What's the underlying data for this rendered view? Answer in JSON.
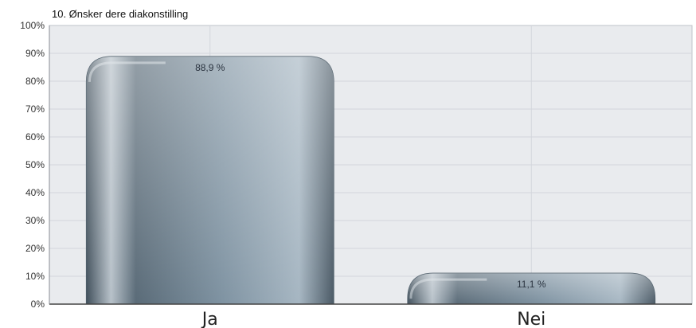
{
  "chart_data": {
    "type": "bar",
    "title": "10. Ønsker dere diakonstilling",
    "xlabel": "",
    "ylabel": "",
    "categories": [
      "Ja",
      "Nei"
    ],
    "values": [
      88.9,
      11.1
    ],
    "value_labels": [
      "88,9 %",
      "11,1 %"
    ],
    "ylim": [
      0,
      100
    ],
    "y_ticks": [
      0,
      10,
      20,
      30,
      40,
      50,
      60,
      70,
      80,
      90,
      100
    ],
    "y_tick_labels": [
      "0%",
      "10%",
      "20%",
      "30%",
      "40%",
      "50%",
      "60%",
      "70%",
      "80%",
      "90%",
      "100%"
    ],
    "grid": true,
    "legend": "none",
    "colors": {
      "plot_background": "#e9ebee",
      "grid": "#d3d6dc",
      "bar_dark": "#4a5a66",
      "bar_mid": "#6e8494",
      "bar_light": "#a6b6c2",
      "highlight": "#d4dae0",
      "axis": "#444444"
    }
  }
}
